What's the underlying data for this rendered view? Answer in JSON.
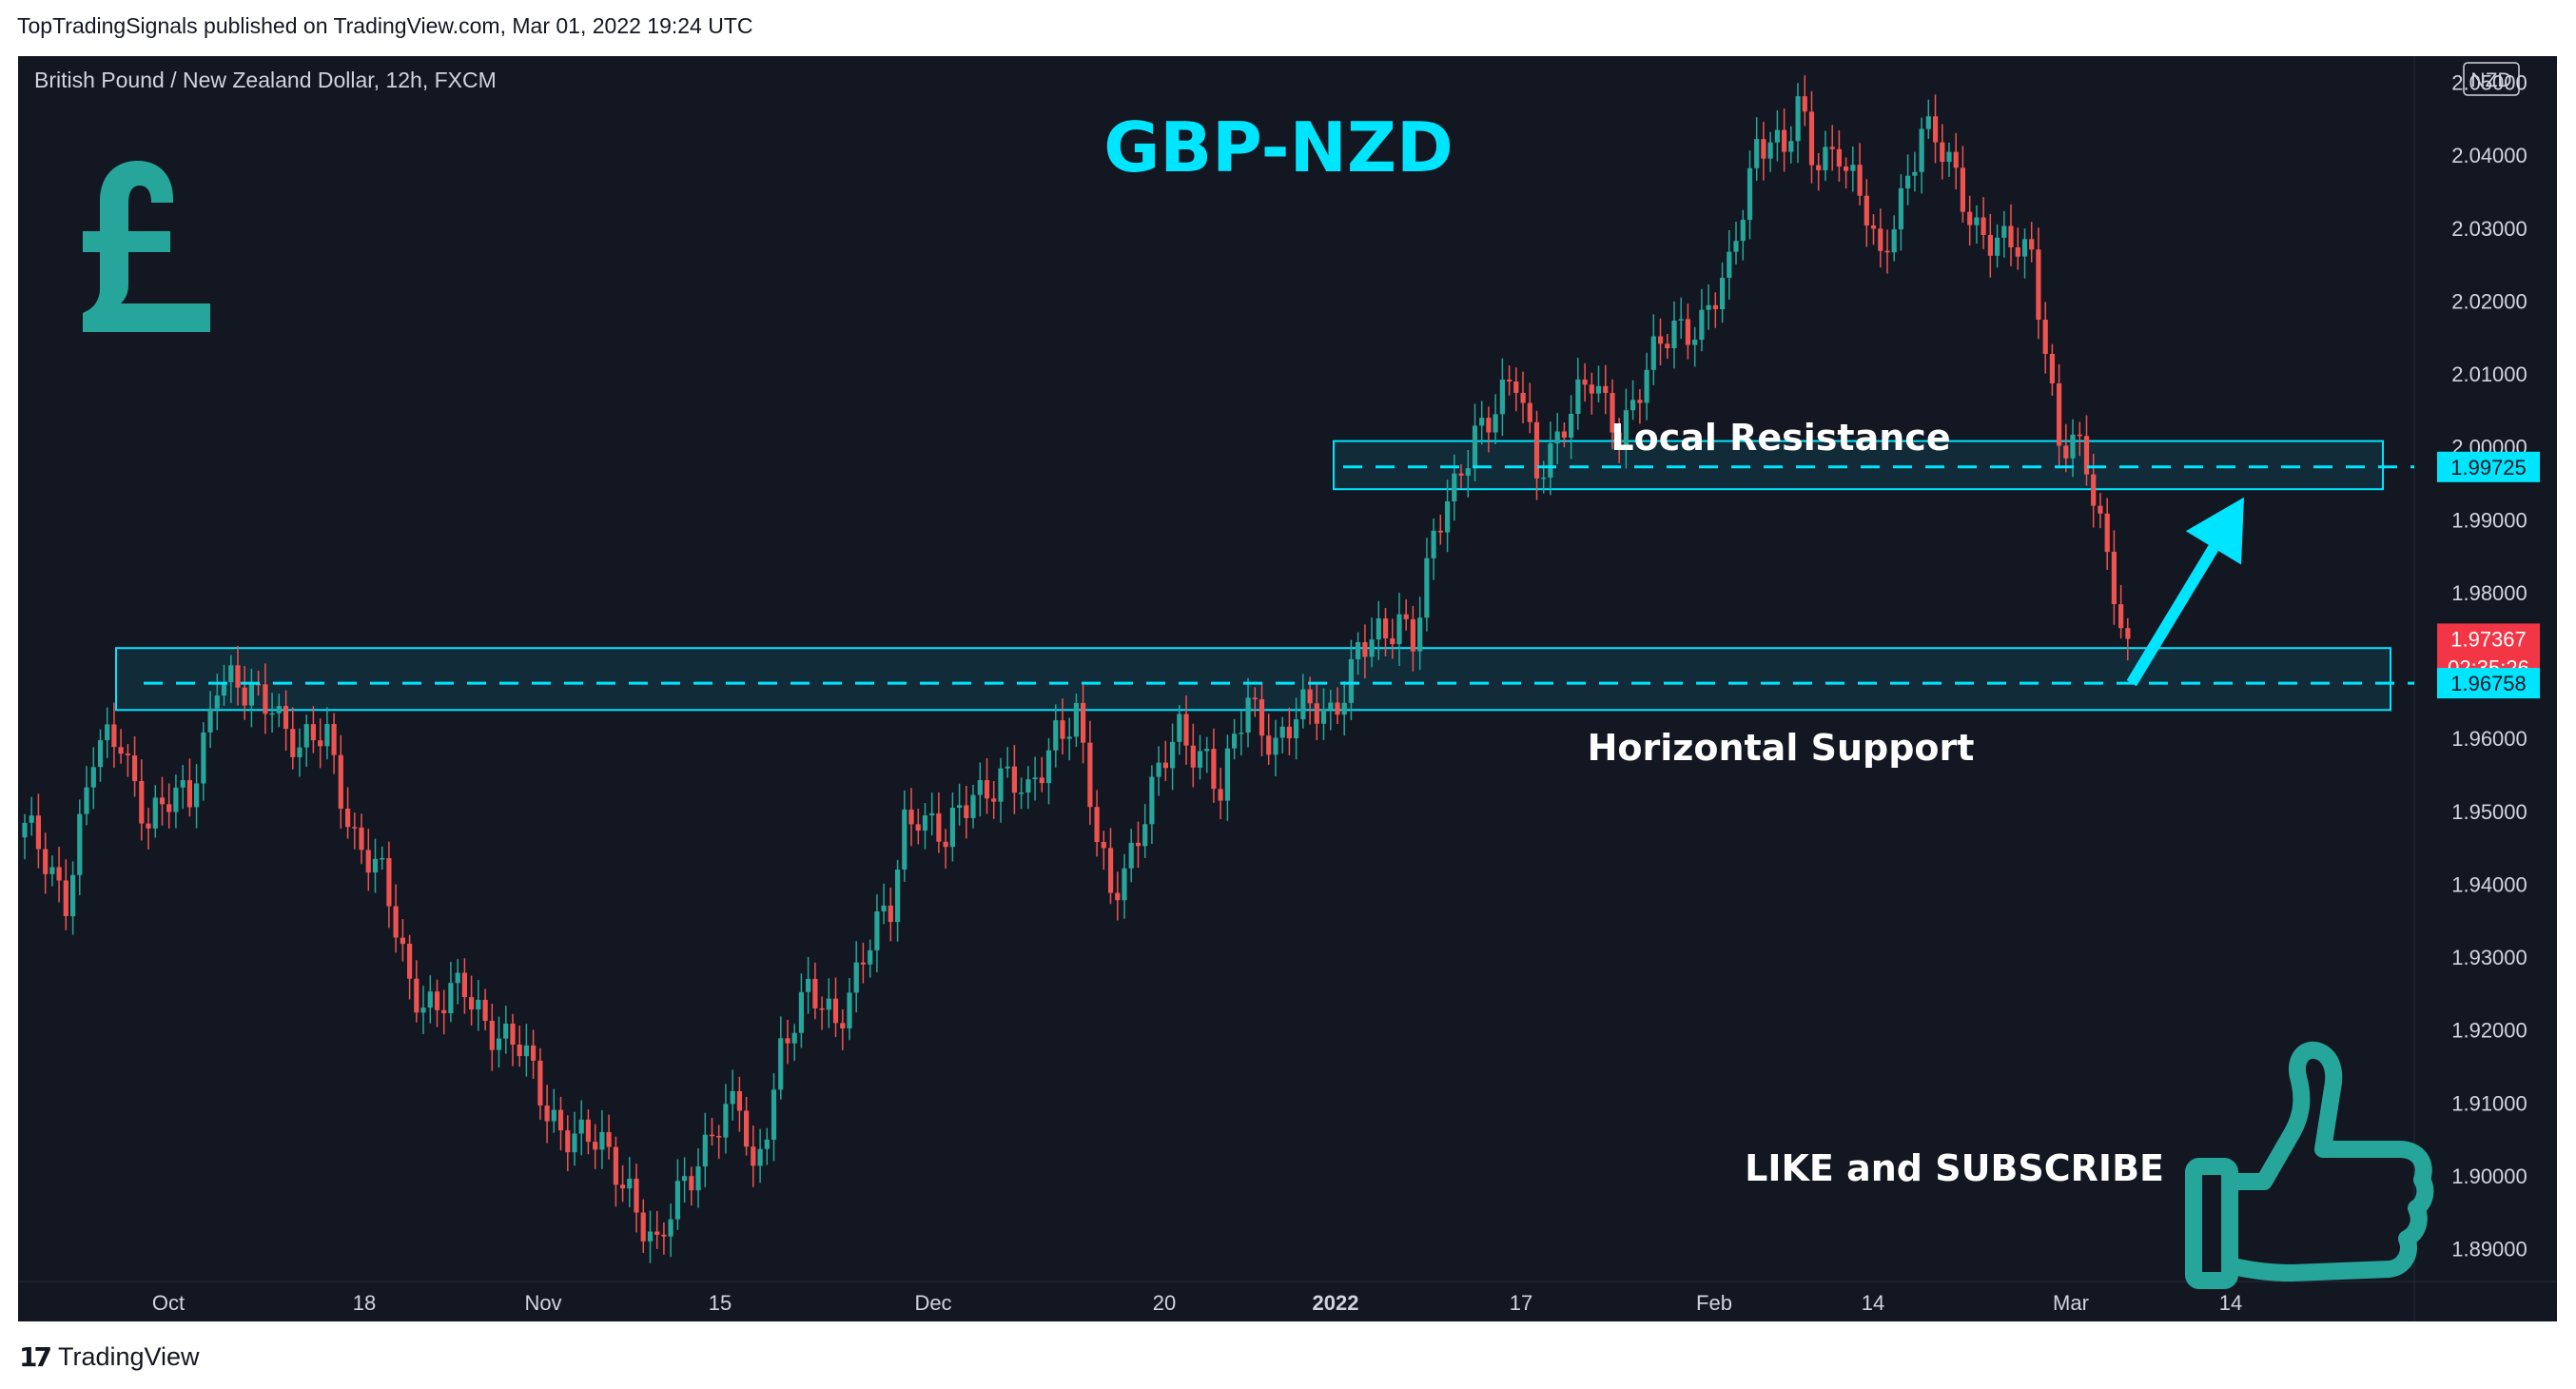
{
  "header": {
    "published_text": "TopTradingSignals published on TradingView.com, Mar 01, 2022 19:24 UTC"
  },
  "footer": {
    "brand": "TradingView"
  },
  "chart_data": {
    "type": "candlestick",
    "symbol_label": "British Pound / New Zealand Dollar, 12h, FXCM",
    "currency_label": "NZD",
    "title": "GBP-NZD",
    "currency_icon": "pound-sign-icon",
    "cta_icon": "thumbs-up-icon",
    "y_axis": {
      "ylim": [
        1.8855,
        2.0536
      ],
      "ticks": [
        "2.05000",
        "2.04000",
        "2.03000",
        "2.02000",
        "2.01000",
        "2.00000",
        "1.99000",
        "1.98000",
        "1.97000",
        "1.96000",
        "1.95000",
        "1.94000",
        "1.93000",
        "1.92000",
        "1.91000",
        "1.90000",
        "1.89000"
      ]
    },
    "x_axis": {
      "ticks": [
        "Oct",
        "18",
        "Nov",
        "15",
        "Dec",
        "20",
        "2022",
        "17",
        "Feb",
        "14",
        "Mar",
        "14"
      ]
    },
    "price_labels": {
      "resistance_level": "1.99725",
      "current_price": "1.97367",
      "countdown": "02:35:26",
      "support_level": "1.96758"
    },
    "levels": {
      "resistance": 1.99725,
      "support": 1.96758,
      "current": 1.97367
    },
    "zones": [
      {
        "name": "Local Resistance",
        "low": 1.9942,
        "high": 2.0008
      },
      {
        "name": "Horizontal Support",
        "low": 1.9639,
        "high": 1.9724
      }
    ],
    "annotations": {
      "resistance_label": "Local Resistance",
      "support_label": "Horizontal Support",
      "cta": "LIKE and SUBSCRIBE"
    },
    "arrow": {
      "from_price": 1.96758,
      "to_price": 1.99385
    },
    "path_anchors": [
      [
        0,
        1.947
      ],
      [
        6,
        1.939
      ],
      [
        10,
        1.957
      ],
      [
        14,
        1.96
      ],
      [
        18,
        1.949
      ],
      [
        24,
        1.952
      ],
      [
        28,
        1.969
      ],
      [
        32,
        1.965
      ],
      [
        36,
        1.966
      ],
      [
        40,
        1.958
      ],
      [
        44,
        1.96
      ],
      [
        48,
        1.947
      ],
      [
        52,
        1.94
      ],
      [
        56,
        1.927
      ],
      [
        60,
        1.923
      ],
      [
        64,
        1.925
      ],
      [
        68,
        1.921
      ],
      [
        72,
        1.917
      ],
      [
        76,
        1.909
      ],
      [
        80,
        1.906
      ],
      [
        84,
        1.903
      ],
      [
        88,
        1.899
      ],
      [
        92,
        1.889
      ],
      [
        96,
        1.899
      ],
      [
        100,
        1.907
      ],
      [
        104,
        1.909
      ],
      [
        106,
        1.899
      ],
      [
        110,
        1.918
      ],
      [
        114,
        1.924
      ],
      [
        118,
        1.922
      ],
      [
        122,
        1.93
      ],
      [
        126,
        1.936
      ],
      [
        128,
        1.949
      ],
      [
        130,
        1.951
      ],
      [
        134,
        1.945
      ],
      [
        138,
        1.953
      ],
      [
        142,
        1.955
      ],
      [
        146,
        1.951
      ],
      [
        150,
        1.962
      ],
      [
        153,
        1.963
      ],
      [
        156,
        1.945
      ],
      [
        158,
        1.939
      ],
      [
        160,
        1.943
      ],
      [
        164,
        1.952
      ],
      [
        168,
        1.961
      ],
      [
        172,
        1.958
      ],
      [
        174,
        1.952
      ],
      [
        178,
        1.965
      ],
      [
        182,
        1.96
      ],
      [
        186,
        1.963
      ],
      [
        190,
        1.964
      ],
      [
        194,
        1.972
      ],
      [
        198,
        1.973
      ],
      [
        200,
        1.977
      ],
      [
        202,
        1.975
      ],
      [
        205,
        1.987
      ],
      [
        208,
        1.993
      ],
      [
        211,
        2.003
      ],
      [
        214,
        2.006
      ],
      [
        217,
        2.008
      ],
      [
        220,
        1.997
      ],
      [
        224,
        2.004
      ],
      [
        228,
        2.008
      ],
      [
        232,
        2.003
      ],
      [
        236,
        2.01
      ],
      [
        240,
        2.016
      ],
      [
        244,
        2.018
      ],
      [
        248,
        2.023
      ],
      [
        252,
        2.042
      ],
      [
        254,
        2.044
      ],
      [
        256,
        2.04
      ],
      [
        258,
        2.046
      ],
      [
        260,
        2.039
      ],
      [
        264,
        2.042
      ],
      [
        268,
        2.031
      ],
      [
        270,
        2.024
      ],
      [
        272,
        2.032
      ],
      [
        276,
        2.044
      ],
      [
        280,
        2.038
      ],
      [
        284,
        2.031
      ],
      [
        288,
        2.027
      ],
      [
        292,
        2.026
      ],
      [
        294,
        2.015
      ],
      [
        296,
        2.001
      ],
      [
        298,
        2.0
      ],
      [
        300,
        1.996
      ],
      [
        302,
        1.989
      ],
      [
        304,
        1.982
      ],
      [
        305,
        1.977
      ],
      [
        306,
        1.97367
      ]
    ],
    "grid": false,
    "legend": "none"
  }
}
